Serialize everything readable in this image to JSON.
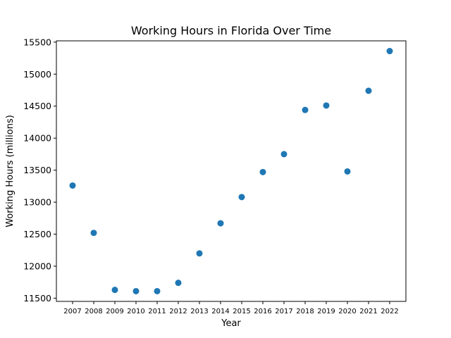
{
  "chart_data": {
    "type": "scatter",
    "title": "Working Hours in Florida Over Time",
    "xlabel": "Year",
    "ylabel": "Working Hours (millions)",
    "x": [
      "2007",
      "2008",
      "2009",
      "2010",
      "2011",
      "2012",
      "2013",
      "2014",
      "2015",
      "2016",
      "2017",
      "2018",
      "2019",
      "2020",
      "2021",
      "2022"
    ],
    "y": [
      13260,
      12520,
      11630,
      11610,
      11610,
      11740,
      12200,
      12670,
      13080,
      13470,
      13750,
      14440,
      14510,
      13480,
      14740,
      15360
    ],
    "ylim": [
      11450,
      15520
    ],
    "yticks": [
      11500,
      12000,
      12500,
      13000,
      13500,
      14000,
      14500,
      15000,
      15500
    ],
    "grid": false,
    "marker_color": "#1f77b4"
  }
}
